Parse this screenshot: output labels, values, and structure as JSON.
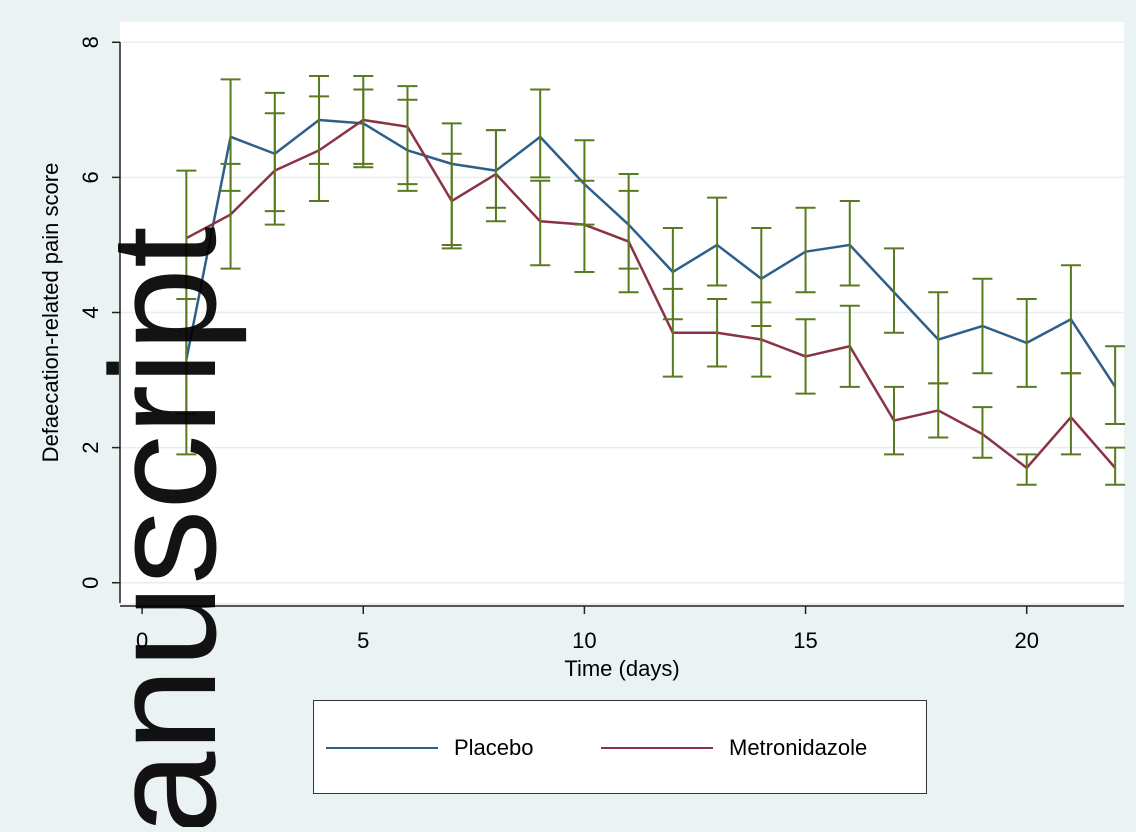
{
  "chart_data": {
    "type": "line",
    "xlabel": "Time (days)",
    "ylabel": "Defaecation-related pain score",
    "xlim": [
      -0.5,
      22.2
    ],
    "ylim": [
      -0.3,
      8.3
    ],
    "xticks": [
      0,
      5,
      10,
      15,
      20
    ],
    "yticks": [
      0,
      2,
      4,
      6,
      8
    ],
    "grid": "horizontal",
    "legend_position": "bottom",
    "x": [
      1,
      2,
      3,
      4,
      5,
      6,
      7,
      8,
      9,
      10,
      11,
      12,
      13,
      14,
      15,
      16,
      17,
      18,
      19,
      20,
      21,
      22
    ],
    "series": [
      {
        "name": "Placebo",
        "color": "#2e5f8a",
        "values": [
          3.3,
          6.6,
          6.35,
          6.85,
          6.8,
          6.4,
          6.2,
          6.1,
          6.6,
          5.9,
          5.3,
          4.6,
          5.0,
          4.5,
          4.9,
          5.0,
          4.3,
          3.6,
          3.8,
          3.55,
          3.9,
          2.9
        ],
        "lower": [
          2.5,
          5.8,
          5.5,
          6.2,
          6.2,
          5.9,
          5.0,
          5.55,
          6.0,
          5.3,
          4.65,
          3.9,
          4.4,
          3.8,
          4.3,
          4.4,
          3.7,
          2.95,
          3.1,
          2.9,
          3.1,
          2.35
        ],
        "upper": [
          4.2,
          7.45,
          7.25,
          7.5,
          7.5,
          7.35,
          6.8,
          6.7,
          7.3,
          6.55,
          6.05,
          5.25,
          5.7,
          5.25,
          5.55,
          5.65,
          4.95,
          4.3,
          4.5,
          4.2,
          4.7,
          3.5
        ]
      },
      {
        "name": "Metronidazole",
        "color": "#8a3344",
        "values": [
          5.1,
          5.45,
          6.1,
          6.4,
          6.85,
          6.75,
          5.65,
          6.05,
          5.35,
          5.3,
          5.05,
          3.7,
          3.7,
          3.6,
          3.35,
          3.5,
          2.4,
          2.55,
          2.2,
          1.7,
          2.45,
          1.7
        ],
        "lower": [
          1.9,
          4.65,
          5.3,
          5.65,
          6.15,
          5.8,
          4.95,
          5.35,
          4.7,
          4.6,
          4.3,
          3.05,
          3.2,
          3.05,
          2.8,
          2.9,
          1.9,
          2.15,
          1.85,
          1.45,
          1.9,
          1.45
        ],
        "upper": [
          6.1,
          6.2,
          6.95,
          7.2,
          7.3,
          7.15,
          6.35,
          6.7,
          5.95,
          5.95,
          5.8,
          4.35,
          4.2,
          4.15,
          3.9,
          4.1,
          2.9,
          2.95,
          2.6,
          1.9,
          3.1,
          2.0
        ]
      }
    ],
    "error_bar_color": "#5a7a20"
  },
  "watermark": {
    "text": "anuscript",
    "color": "#bfbfbf"
  }
}
